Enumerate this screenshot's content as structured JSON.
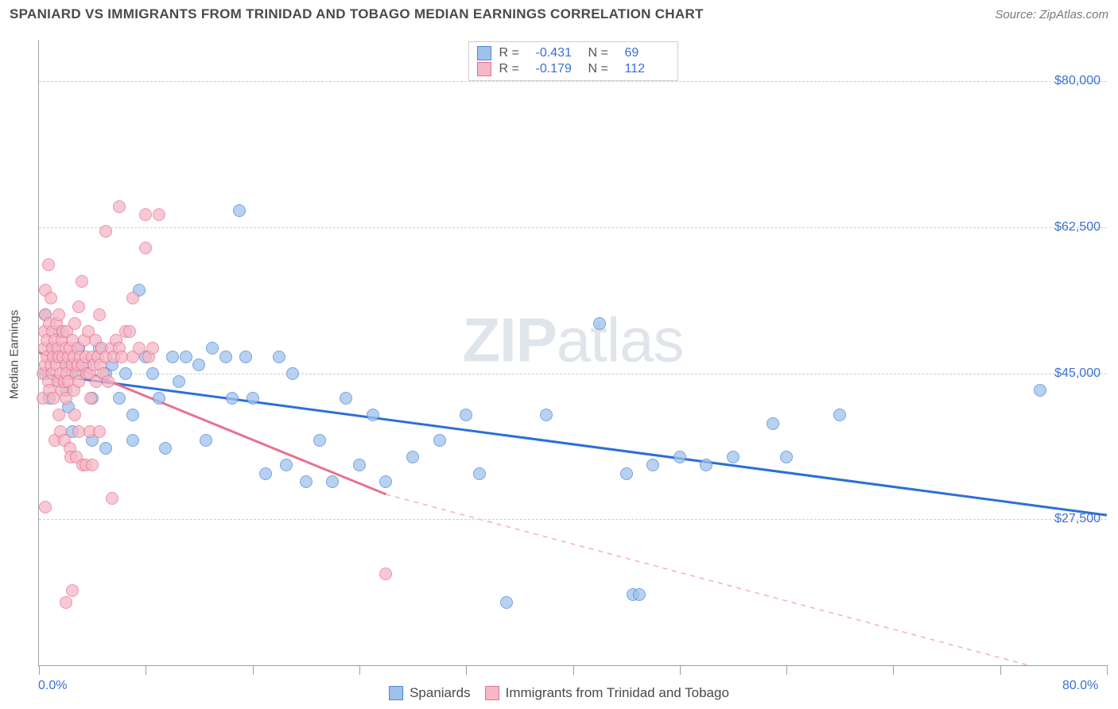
{
  "header": {
    "title": "SPANIARD VS IMMIGRANTS FROM TRINIDAD AND TOBAGO MEDIAN EARNINGS CORRELATION CHART",
    "source_prefix": "Source: ",
    "source_name": "ZipAtlas.com"
  },
  "watermark": {
    "part1": "ZIP",
    "part2": "atlas"
  },
  "chart": {
    "type": "scatter",
    "ylabel": "Median Earnings",
    "xlim": [
      0,
      80
    ],
    "ylim": [
      10000,
      85000
    ],
    "xlim_labels": [
      "0.0%",
      "80.0%"
    ],
    "xticks": [
      0,
      8,
      16,
      24,
      32,
      40,
      48,
      56,
      64,
      72,
      80
    ],
    "yticks": [
      27500,
      45000,
      62500,
      80000
    ],
    "ytick_labels": [
      "$27,500",
      "$45,000",
      "$62,500",
      "$80,000"
    ],
    "grid_color": "#d0d0d0",
    "background_color": "#ffffff",
    "axis_color": "#9aa0a6",
    "tick_label_color": "#3b6fd6",
    "label_fontsize": 15,
    "tick_fontsize": 16,
    "marker_size": 16,
    "series": [
      {
        "id": "spaniards",
        "name": "Spaniards",
        "fill_color": "#9fc2ec",
        "stroke_color": "#4f86d9",
        "trend_color": "#2d6fd6",
        "trend_width": 3,
        "R": "-0.431",
        "N": "69",
        "trend": {
          "x1": 0,
          "y1": 45000,
          "x2": 80,
          "y2": 28000,
          "dashed": false
        },
        "points": [
          [
            0.5,
            45000
          ],
          [
            0.5,
            52000
          ],
          [
            0.8,
            42000
          ],
          [
            1,
            48000
          ],
          [
            1.2,
            47000
          ],
          [
            1.5,
            50000
          ],
          [
            1.5,
            44000
          ],
          [
            2,
            46000
          ],
          [
            2,
            43000
          ],
          [
            2.2,
            41000
          ],
          [
            2.5,
            45000
          ],
          [
            2.5,
            38000
          ],
          [
            3,
            48000
          ],
          [
            3,
            45000
          ],
          [
            3.5,
            46000
          ],
          [
            4,
            42000
          ],
          [
            4,
            37000
          ],
          [
            4.5,
            48000
          ],
          [
            5,
            45000
          ],
          [
            5,
            36000
          ],
          [
            5.5,
            46000
          ],
          [
            6,
            42000
          ],
          [
            6.5,
            45000
          ],
          [
            7,
            40000
          ],
          [
            7,
            37000
          ],
          [
            7.5,
            55000
          ],
          [
            8,
            47000
          ],
          [
            8.5,
            45000
          ],
          [
            9,
            42000
          ],
          [
            9.5,
            36000
          ],
          [
            10,
            47000
          ],
          [
            10.5,
            44000
          ],
          [
            11,
            47000
          ],
          [
            12,
            46000
          ],
          [
            12.5,
            37000
          ],
          [
            13,
            48000
          ],
          [
            14,
            47000
          ],
          [
            14.5,
            42000
          ],
          [
            15,
            64500
          ],
          [
            15.5,
            47000
          ],
          [
            16,
            42000
          ],
          [
            17,
            33000
          ],
          [
            18,
            47000
          ],
          [
            18.5,
            34000
          ],
          [
            19,
            45000
          ],
          [
            20,
            32000
          ],
          [
            21,
            37000
          ],
          [
            22,
            32000
          ],
          [
            23,
            42000
          ],
          [
            24,
            34000
          ],
          [
            25,
            40000
          ],
          [
            26,
            32000
          ],
          [
            28,
            35000
          ],
          [
            30,
            37000
          ],
          [
            32,
            40000
          ],
          [
            33,
            33000
          ],
          [
            35,
            17500
          ],
          [
            38,
            40000
          ],
          [
            42,
            51000
          ],
          [
            44,
            33000
          ],
          [
            44.5,
            18500
          ],
          [
            45,
            18500
          ],
          [
            46,
            34000
          ],
          [
            48,
            35000
          ],
          [
            50,
            34000
          ],
          [
            52,
            35000
          ],
          [
            55,
            39000
          ],
          [
            56,
            35000
          ],
          [
            60,
            40000
          ],
          [
            75,
            43000
          ]
        ]
      },
      {
        "id": "trinidad",
        "name": "Immigrants from Trinidad and Tobago",
        "fill_color": "#f5b8c6",
        "stroke_color": "#e8718f",
        "trend_color": "#e8718f",
        "trend_width": 3,
        "R": "-0.179",
        "N": "112",
        "trend": {
          "x1": 0,
          "y1": 47500,
          "x2": 26,
          "y2": 30500,
          "dashed_x2": 80,
          "dashed_y2": 7500,
          "dashed": true
        },
        "points": [
          [
            0.3,
            42000
          ],
          [
            0.3,
            45000
          ],
          [
            0.4,
            48000
          ],
          [
            0.4,
            50000
          ],
          [
            0.5,
            52000
          ],
          [
            0.5,
            55000
          ],
          [
            0.5,
            46000
          ],
          [
            0.6,
            47000
          ],
          [
            0.6,
            49000
          ],
          [
            0.7,
            44000
          ],
          [
            0.7,
            58000
          ],
          [
            0.8,
            51000
          ],
          [
            0.8,
            43000
          ],
          [
            0.9,
            46000
          ],
          [
            0.9,
            54000
          ],
          [
            1,
            48000
          ],
          [
            1,
            45000
          ],
          [
            1,
            50000
          ],
          [
            1.1,
            47000
          ],
          [
            1.1,
            42000
          ],
          [
            1.2,
            37000
          ],
          [
            1.2,
            49000
          ],
          [
            1.3,
            46000
          ],
          [
            1.3,
            51000
          ],
          [
            1.4,
            44000
          ],
          [
            1.4,
            48000
          ],
          [
            1.5,
            40000
          ],
          [
            1.5,
            47000
          ],
          [
            1.5,
            52000
          ],
          [
            1.6,
            45000
          ],
          [
            1.6,
            38000
          ],
          [
            1.7,
            49000
          ],
          [
            1.7,
            43000
          ],
          [
            1.8,
            47000
          ],
          [
            1.8,
            50000
          ],
          [
            1.9,
            44000
          ],
          [
            1.9,
            37000
          ],
          [
            2,
            46000
          ],
          [
            2,
            48000
          ],
          [
            2,
            42000
          ],
          [
            2.1,
            45000
          ],
          [
            2.1,
            50000
          ],
          [
            2.2,
            47000
          ],
          [
            2.2,
            44000
          ],
          [
            2.3,
            48000
          ],
          [
            2.3,
            36000
          ],
          [
            2.4,
            35000
          ],
          [
            2.5,
            46000
          ],
          [
            2.5,
            49000
          ],
          [
            2.6,
            43000
          ],
          [
            2.6,
            47000
          ],
          [
            2.7,
            40000
          ],
          [
            2.7,
            51000
          ],
          [
            2.8,
            35000
          ],
          [
            2.8,
            45000
          ],
          [
            2.9,
            48000
          ],
          [
            2.9,
            46000
          ],
          [
            3,
            53000
          ],
          [
            3,
            44000
          ],
          [
            3,
            38000
          ],
          [
            3.1,
            47000
          ],
          [
            3.2,
            56000
          ],
          [
            3.3,
            46000
          ],
          [
            3.3,
            34000
          ],
          [
            3.4,
            49000
          ],
          [
            3.5,
            34000
          ],
          [
            3.5,
            47000
          ],
          [
            3.6,
            45000
          ],
          [
            3.7,
            50000
          ],
          [
            3.8,
            38000
          ],
          [
            3.8,
            45000
          ],
          [
            3.9,
            42000
          ],
          [
            4,
            47000
          ],
          [
            4,
            34000
          ],
          [
            4.1,
            46000
          ],
          [
            4.2,
            49000
          ],
          [
            4.3,
            44000
          ],
          [
            4.4,
            47000
          ],
          [
            4.5,
            38000
          ],
          [
            4.5,
            52000
          ],
          [
            4.6,
            46000
          ],
          [
            4.7,
            48000
          ],
          [
            4.8,
            45000
          ],
          [
            5,
            47000
          ],
          [
            5,
            62000
          ],
          [
            5.2,
            44000
          ],
          [
            5.4,
            48000
          ],
          [
            5.5,
            30000
          ],
          [
            5.6,
            47000
          ],
          [
            5.8,
            49000
          ],
          [
            6,
            48000
          ],
          [
            6,
            65000
          ],
          [
            6.2,
            47000
          ],
          [
            6.5,
            50000
          ],
          [
            6.8,
            50000
          ],
          [
            7,
            47000
          ],
          [
            7,
            54000
          ],
          [
            7.5,
            48000
          ],
          [
            8,
            60000
          ],
          [
            8,
            64000
          ],
          [
            8.2,
            47000
          ],
          [
            8.5,
            48000
          ],
          [
            9,
            64000
          ],
          [
            0.5,
            29000
          ],
          [
            2,
            17500
          ],
          [
            2.5,
            19000
          ],
          [
            26,
            21000
          ]
        ]
      }
    ]
  },
  "top_legend": {
    "R_label": "R =",
    "N_label": "N ="
  },
  "bottom_legend_labels": [
    "Spaniards",
    "Immigrants from Trinidad and Tobago"
  ]
}
